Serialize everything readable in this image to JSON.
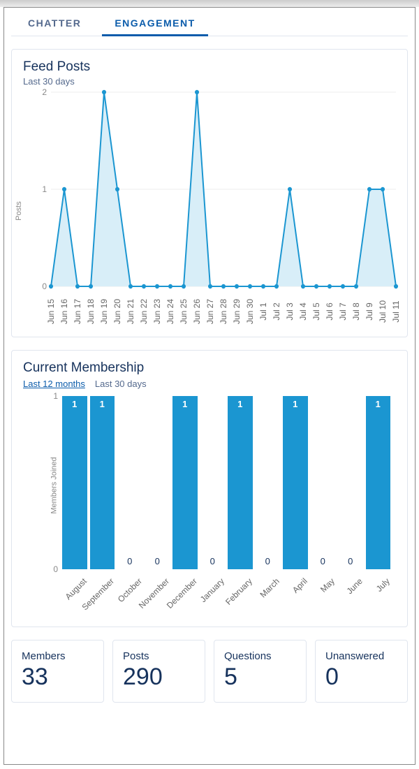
{
  "colors": {
    "accent": "#0b5cab",
    "chart_blue": "#1b96d1",
    "chart_fill": "#d8eef8",
    "text_dark": "#16325c",
    "text_muted": "#54698d",
    "border": "#e0e5ee",
    "grid": "#eeeeee"
  },
  "tabs": [
    {
      "label": "CHATTER",
      "active": false
    },
    {
      "label": "ENGAGEMENT",
      "active": true
    }
  ],
  "feed_posts": {
    "title": "Feed Posts",
    "subtitle": "Last 30 days",
    "type": "line-area",
    "y_label": "Posts",
    "ylim": [
      0,
      2
    ],
    "yticks": [
      0,
      1,
      2
    ],
    "marker_radius": 3.2,
    "line_width": 2,
    "line_color": "#1b96d1",
    "fill_color": "#d8eef8",
    "x_labels": [
      "Jun 15",
      "Jun 16",
      "Jun 17",
      "Jun 18",
      "Jun 19",
      "Jun 20",
      "Jun 21",
      "Jun 22",
      "Jun 23",
      "Jun 24",
      "Jun 25",
      "Jun 26",
      "Jun 27",
      "Jun 28",
      "Jun 29",
      "Jun 30",
      "Jul 1",
      "Jul 2",
      "Jul 3",
      "Jul 4",
      "Jul 5",
      "Jul 6",
      "Jul 7",
      "Jul 8",
      "Jul 9",
      "Jul 10",
      "Jul 11"
    ],
    "values": [
      0,
      1,
      0,
      0,
      2,
      1,
      0,
      0,
      0,
      0,
      0,
      2,
      0,
      0,
      0,
      0,
      0,
      0,
      1,
      0,
      0,
      0,
      0,
      0,
      1,
      1,
      0
    ],
    "x_label_fontsize": 12,
    "y_label_fontsize": 12
  },
  "membership": {
    "title": "Current Membership",
    "time_options": [
      {
        "label": "Last 12 months",
        "active": true
      },
      {
        "label": "Last 30 days",
        "active": false
      }
    ],
    "type": "bar",
    "y_label": "Members Joined",
    "ylim": [
      0,
      1
    ],
    "yticks": [
      0,
      1
    ],
    "bar_color": "#1b96d1",
    "value_label_color_on_bar": "#ffffff",
    "value_label_color_zero": "#16325c",
    "x_labels": [
      "August",
      "September",
      "October",
      "November",
      "December",
      "January",
      "February",
      "March",
      "April",
      "May",
      "June",
      "July"
    ],
    "values": [
      1,
      1,
      0,
      0,
      1,
      0,
      1,
      0,
      1,
      0,
      0,
      1
    ],
    "x_label_rotation_deg": -45
  },
  "stats": [
    {
      "label": "Members",
      "value": "33"
    },
    {
      "label": "Posts",
      "value": "290"
    },
    {
      "label": "Questions",
      "value": "5"
    },
    {
      "label": "Unanswered",
      "value": "0"
    }
  ]
}
